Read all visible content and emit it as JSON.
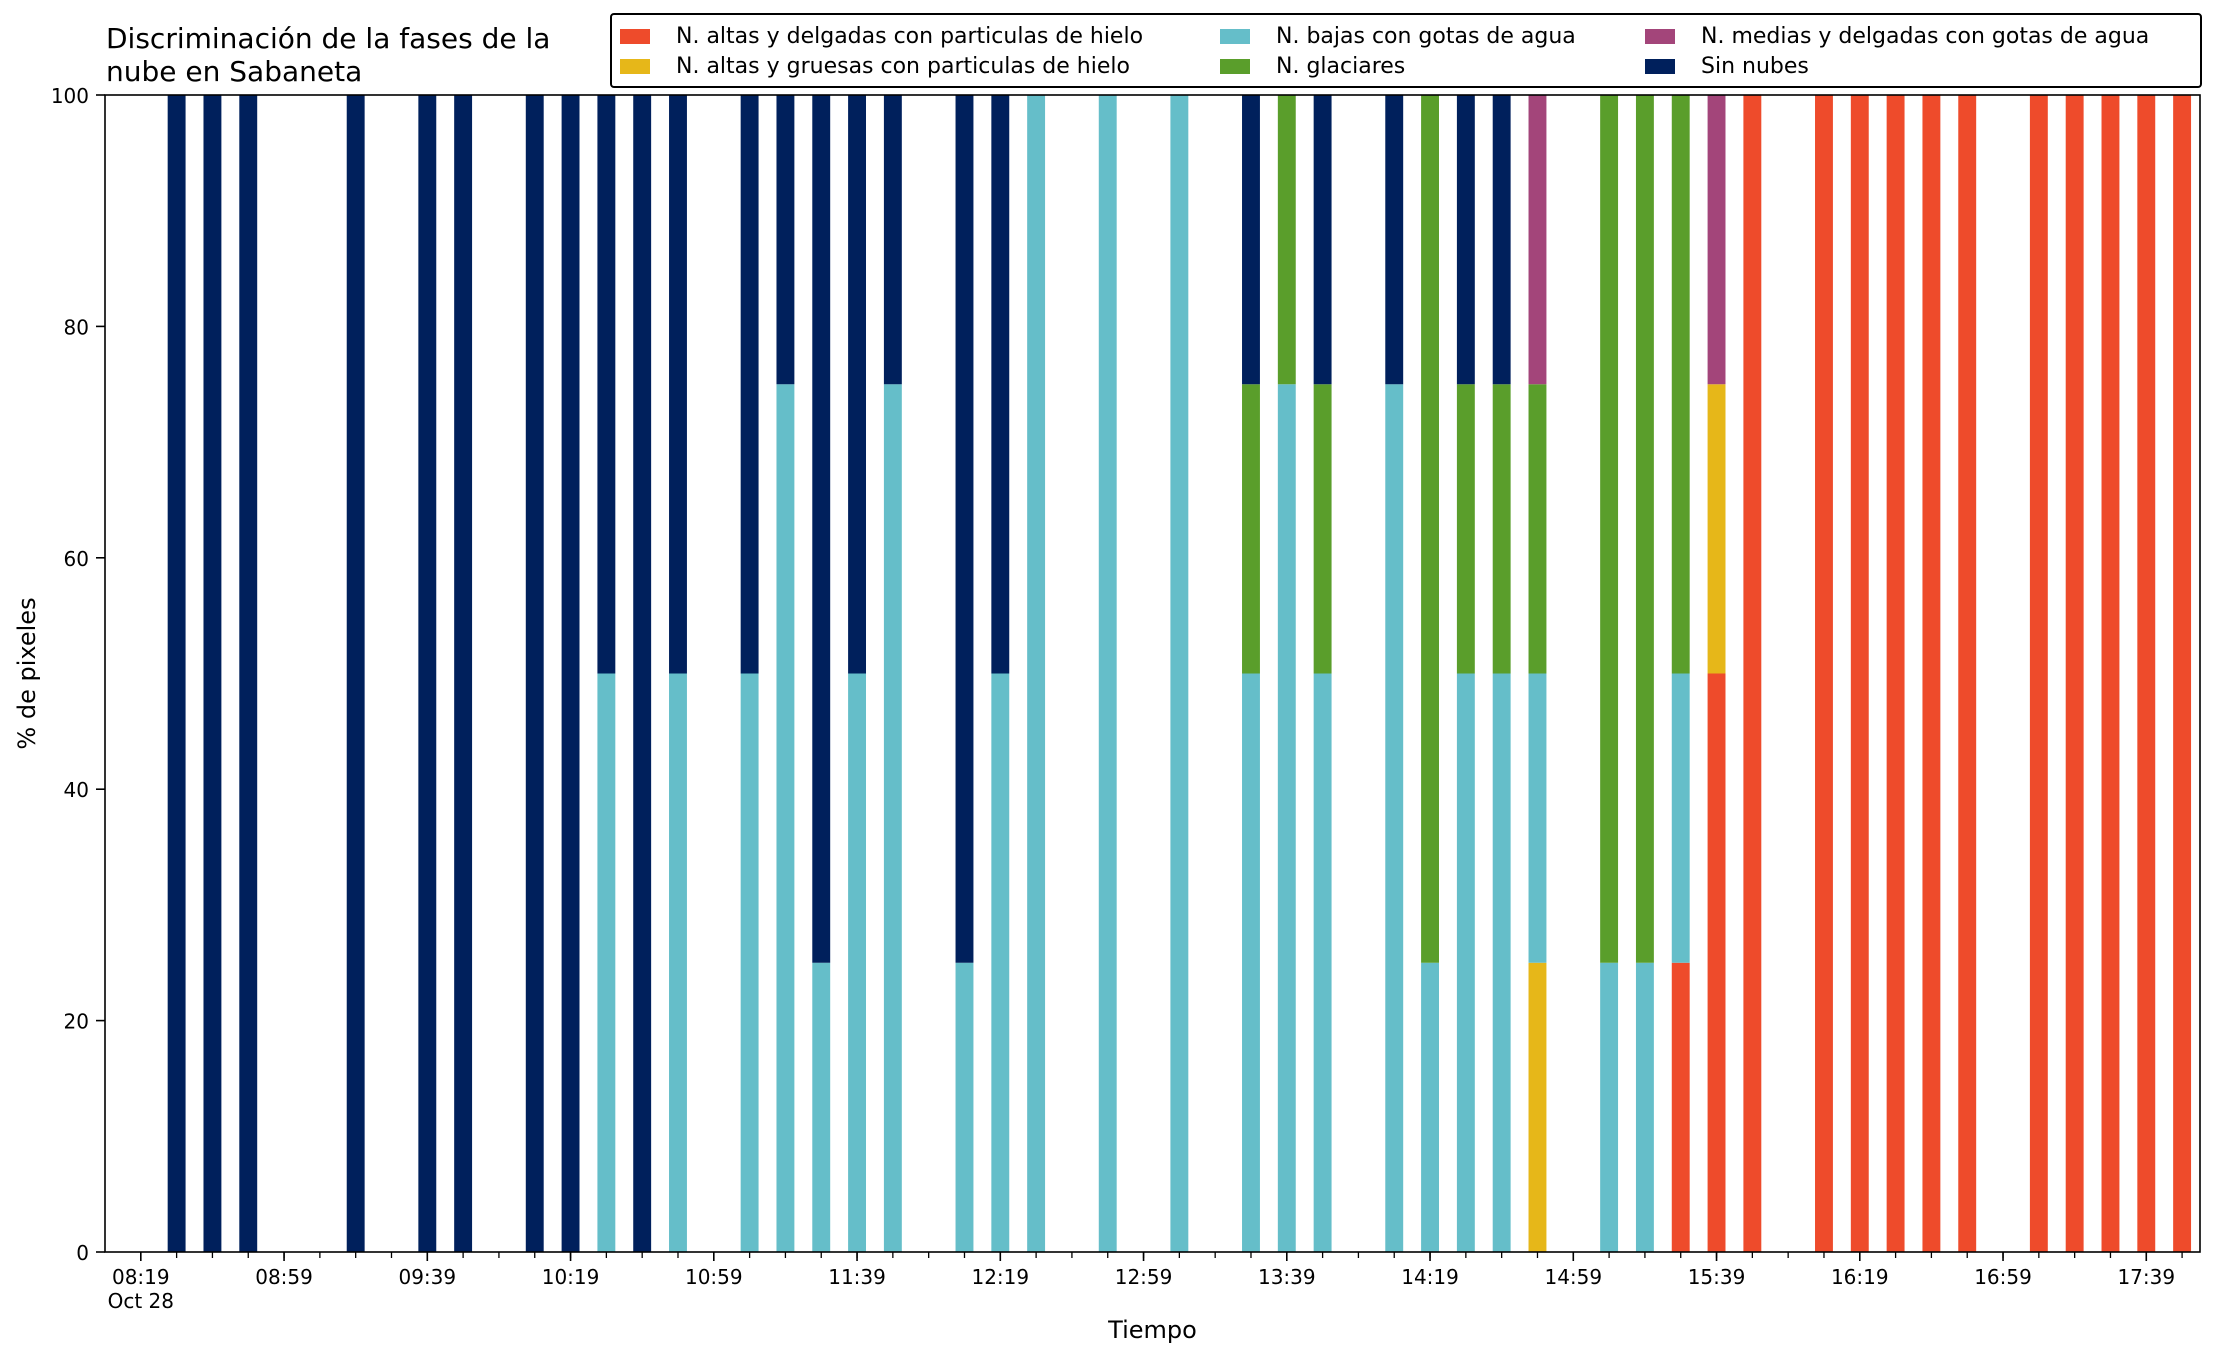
{
  "title": "Discriminación de la fases de la\nnube en Sabaneta",
  "chart_data": {
    "type": "bar",
    "stacked": true,
    "xlabel": "Tiempo",
    "ylabel": "% de pixeles",
    "ylim": [
      0,
      100
    ],
    "yticks": [
      0,
      20,
      40,
      60,
      80,
      100
    ],
    "xlim_minutes": [
      -10,
      575
    ],
    "bar_width_minutes": 5,
    "xtick_interval_minutes": 10,
    "xtick_labels": [
      {
        "minutes": 0,
        "label": "08:19\nOct 28"
      },
      {
        "minutes": 40,
        "label": "08:59"
      },
      {
        "minutes": 80,
        "label": "09:39"
      },
      {
        "minutes": 120,
        "label": "10:19"
      },
      {
        "minutes": 160,
        "label": "10:59"
      },
      {
        "minutes": 200,
        "label": "11:39"
      },
      {
        "minutes": 240,
        "label": "12:19"
      },
      {
        "minutes": 280,
        "label": "12:59"
      },
      {
        "minutes": 320,
        "label": "13:39"
      },
      {
        "minutes": 360,
        "label": "14:19"
      },
      {
        "minutes": 400,
        "label": "14:59"
      },
      {
        "minutes": 440,
        "label": "15:39"
      },
      {
        "minutes": 480,
        "label": "16:19"
      },
      {
        "minutes": 520,
        "label": "16:59"
      },
      {
        "minutes": 560,
        "label": "17:39"
      }
    ],
    "x": [
      "08:29",
      "08:39",
      "08:49",
      "09:19",
      "09:39",
      "09:49",
      "10:09",
      "10:19",
      "10:29",
      "10:39",
      "10:49",
      "11:09",
      "11:19",
      "11:29",
      "11:39",
      "11:49",
      "12:09",
      "12:19",
      "12:29",
      "12:49",
      "13:09",
      "13:29",
      "13:39",
      "13:49",
      "14:09",
      "14:19",
      "14:29",
      "14:39",
      "14:49",
      "15:09",
      "15:19",
      "15:29",
      "15:39",
      "15:49",
      "16:09",
      "16:19",
      "16:29",
      "16:39",
      "16:49",
      "17:09",
      "17:19",
      "17:29",
      "17:39",
      "17:49"
    ],
    "series": [
      {
        "name": "N. altas y delgadas con particulas de hielo",
        "color": "#ee4b2b",
        "values": [
          0,
          0,
          0,
          0,
          0,
          0,
          0,
          0,
          0,
          0,
          0,
          0,
          0,
          0,
          0,
          0,
          0,
          0,
          0,
          0,
          0,
          0,
          0,
          0,
          0,
          0,
          0,
          0,
          0,
          0,
          0,
          25,
          50,
          100,
          100,
          100,
          100,
          100,
          100,
          100,
          100,
          100,
          100,
          100
        ]
      },
      {
        "name": "N. altas y gruesas con particulas de hielo",
        "color": "#e6b719",
        "values": [
          0,
          0,
          0,
          0,
          0,
          0,
          0,
          0,
          0,
          0,
          0,
          0,
          0,
          0,
          0,
          0,
          0,
          0,
          0,
          0,
          0,
          0,
          0,
          0,
          0,
          0,
          0,
          0,
          25,
          0,
          0,
          0,
          25,
          0,
          0,
          0,
          0,
          0,
          0,
          0,
          0,
          0,
          0,
          0
        ]
      },
      {
        "name": "N. bajas con gotas de agua",
        "color": "#65bec9",
        "values": [
          0,
          0,
          0,
          0,
          0,
          0,
          0,
          0,
          50,
          0,
          50,
          50,
          75,
          25,
          50,
          75,
          25,
          50,
          100,
          100,
          100,
          50,
          75,
          50,
          75,
          25,
          50,
          50,
          25,
          25,
          25,
          25,
          0,
          0,
          0,
          0,
          0,
          0,
          0,
          0,
          0,
          0,
          0,
          0
        ]
      },
      {
        "name": "N. glaciares",
        "color": "#5a9e2b",
        "values": [
          0,
          0,
          0,
          0,
          0,
          0,
          0,
          0,
          0,
          0,
          0,
          0,
          0,
          0,
          0,
          0,
          0,
          0,
          0,
          0,
          0,
          25,
          25,
          25,
          0,
          75,
          25,
          25,
          25,
          75,
          75,
          50,
          0,
          0,
          0,
          0,
          0,
          0,
          0,
          0,
          0,
          0,
          0,
          0
        ]
      },
      {
        "name": "N. medias y delgadas con gotas de agua",
        "color": "#a3457a",
        "values": [
          0,
          0,
          0,
          0,
          0,
          0,
          0,
          0,
          0,
          0,
          0,
          0,
          0,
          0,
          0,
          0,
          0,
          0,
          0,
          0,
          0,
          0,
          0,
          0,
          0,
          0,
          0,
          0,
          25,
          0,
          0,
          0,
          25,
          0,
          0,
          0,
          0,
          0,
          0,
          0,
          0,
          0,
          0,
          0
        ]
      },
      {
        "name": "Sin nubes",
        "color": "#00205c",
        "values": [
          100,
          100,
          100,
          100,
          100,
          100,
          100,
          100,
          50,
          100,
          50,
          50,
          25,
          75,
          50,
          25,
          75,
          50,
          0,
          0,
          0,
          25,
          0,
          25,
          25,
          0,
          25,
          25,
          0,
          0,
          0,
          0,
          0,
          0,
          0,
          0,
          0,
          0,
          0,
          0,
          0,
          0,
          0,
          0
        ]
      }
    ],
    "legend_position": "top-right",
    "legend_columns": 3,
    "grid": false
  }
}
